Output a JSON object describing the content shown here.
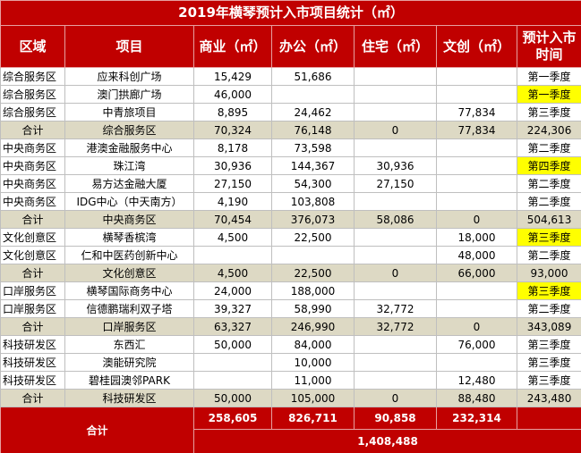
{
  "title": "2019年横琴预计入市项目统计（㎡）",
  "header": [
    "区域",
    "项目",
    "商业（㎡）",
    "办公（㎡）",
    "住宅（㎡）",
    "文创（㎡）",
    "预计入市时间"
  ],
  "rows": [
    {
      "cells": [
        "综合服务区",
        "应来科创广场",
        "15,429",
        "51,686",
        null,
        null,
        "第一季度"
      ]
    },
    {
      "cells": [
        "综合服务区",
        "澳门拱廊广场",
        "46,000",
        null,
        null,
        null,
        "第一季度"
      ],
      "highlight": true
    },
    {
      "cells": [
        "综合服务区",
        "中青旅项目",
        "8,895",
        "24,462",
        null,
        "77,834",
        "第三季度"
      ]
    },
    {
      "cells": [
        "合计",
        "综合服务区",
        "70,324",
        "76,148",
        "0",
        "77,834",
        "224,306"
      ],
      "subtotal": true
    },
    {
      "cells": [
        "中央商务区",
        "港澳金融服务中心",
        "8,178",
        "73,598",
        null,
        null,
        "第二季度"
      ]
    },
    {
      "cells": [
        "中央商务区",
        "珠江湾",
        "30,936",
        "144,367",
        "30,936",
        null,
        "第四季度"
      ],
      "highlight": true
    },
    {
      "cells": [
        "中央商务区",
        "易方达金融大厦",
        "27,150",
        "54,300",
        "27,150",
        null,
        "第二季度"
      ]
    },
    {
      "cells": [
        "中央商务区",
        "IDG中心（中天南方）",
        "4,190",
        "103,808",
        null,
        null,
        "第二季度"
      ]
    },
    {
      "cells": [
        "合计",
        "中央商务区",
        "70,454",
        "376,073",
        "58,086",
        "0",
        "504,613"
      ],
      "subtotal": true
    },
    {
      "cells": [
        "文化创意区",
        "横琴香槟湾",
        "4,500",
        "22,500",
        null,
        "18,000",
        "第三季度"
      ],
      "highlight": true
    },
    {
      "cells": [
        "文化创意区",
        "仁和中医药创新中心",
        null,
        null,
        null,
        "48,000",
        "第二季度"
      ]
    },
    {
      "cells": [
        "合计",
        "文化创意区",
        "4,500",
        "22,500",
        "0",
        "66,000",
        "93,000"
      ],
      "subtotal": true
    },
    {
      "cells": [
        "口岸服务区",
        "横琴国际商务中心",
        "24,000",
        "188,000",
        null,
        null,
        "第三季度"
      ],
      "highlight": true
    },
    {
      "cells": [
        "口岸服务区",
        "信德鹏瑞利双子塔",
        "39,327",
        "58,990",
        "32,772",
        null,
        "第二季度"
      ]
    },
    {
      "cells": [
        "合计",
        "口岸服务区",
        "63,327",
        "246,990",
        "32,772",
        "0",
        "343,089"
      ],
      "subtotal": true
    },
    {
      "cells": [
        "科技研发区",
        "东西汇",
        "50,000",
        "84,000",
        null,
        "76,000",
        "第三季度"
      ]
    },
    {
      "cells": [
        "科技研发区",
        "澳能研究院",
        null,
        "10,000",
        null,
        null,
        "第三季度"
      ]
    },
    {
      "cells": [
        "科技研发区",
        "碧桂园澳邻PARK",
        null,
        "11,000",
        null,
        "12,480",
        "第三季度"
      ]
    },
    {
      "cells": [
        "合计",
        "科技研发区",
        "50,000",
        "105,000",
        "0",
        "88,480",
        "243,480"
      ],
      "subtotal": true
    }
  ],
  "total": {
    "label": "合计",
    "values": [
      "258,605",
      "826,711",
      "90,858",
      "232,314"
    ],
    "grand_total": "1,408,488"
  }
}
